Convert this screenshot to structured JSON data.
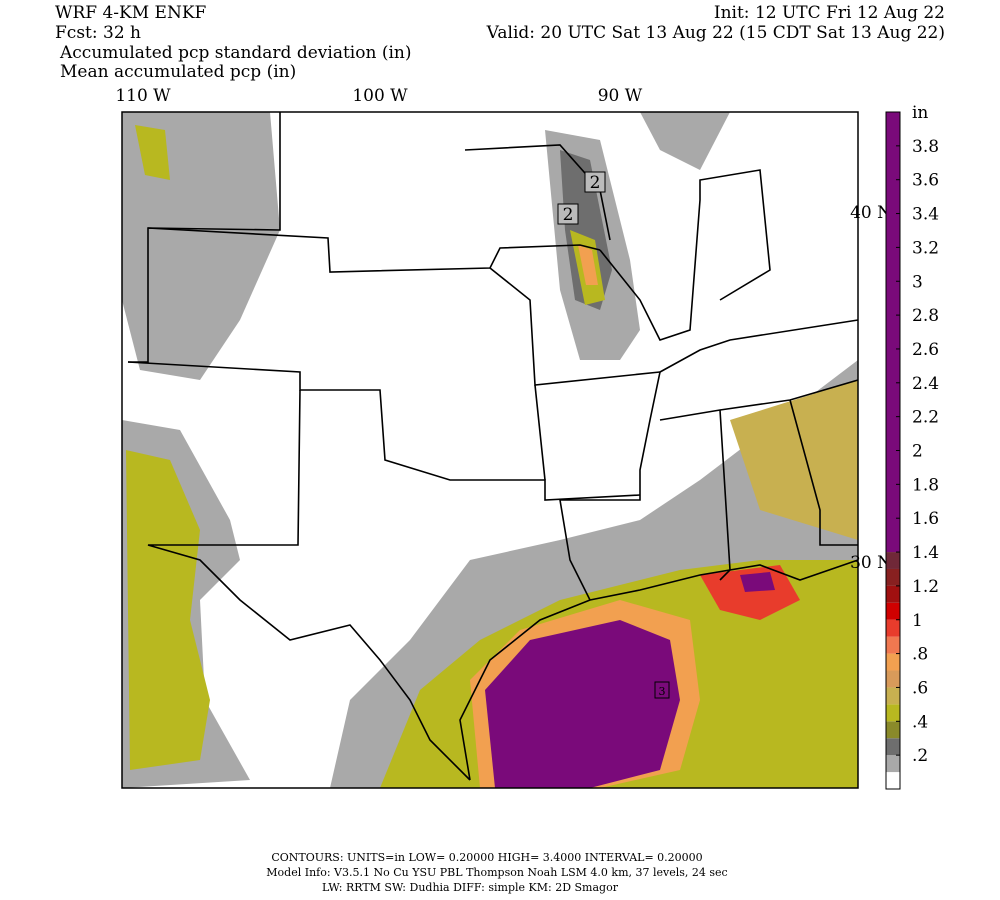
{
  "header": {
    "left_line1": "WRF 4-KM ENKF",
    "left_line2": "Fcst:   32 h",
    "right_line1": "Init: 12 UTC Fri 12 Aug 22",
    "right_line2": "Valid: 20 UTC Sat 13 Aug 22 (15 CDT Sat 13 Aug 22)",
    "field1": "Accumulated pcp standard deviation (in)",
    "field2": "Mean accumulated pcp (in)"
  },
  "map": {
    "lon_labels": [
      "110 W",
      "100 W",
      "90 W"
    ],
    "lat_labels": [
      "40 N",
      "30 N"
    ],
    "contour_labels": [
      "2",
      "2",
      "3"
    ]
  },
  "colorbar": {
    "unit": "in",
    "bins": [
      0,
      0.1,
      0.2,
      0.3,
      0.4,
      0.5,
      0.6,
      0.7,
      0.8,
      0.9,
      1.0,
      1.1,
      1.2,
      1.3,
      1.4,
      4.0
    ],
    "colors": [
      "#ffffff",
      "#a9a9a9",
      "#6e6e6e",
      "#8a8a2a",
      "#b8b820",
      "#c8b050",
      "#d89a5a",
      "#f2a050",
      "#f07850",
      "#e83c2c",
      "#d00000",
      "#a01010",
      "#882020",
      "#702838",
      "#7a0a7a"
    ],
    "ticks": [
      {
        "value": 0.2,
        "label": ".2"
      },
      {
        "value": 0.4,
        "label": ".4"
      },
      {
        "value": 0.6,
        "label": ".6"
      },
      {
        "value": 0.8,
        "label": ".8"
      },
      1,
      1.2,
      1.4,
      1.6,
      1.8,
      2,
      2.2,
      2.4,
      2.6,
      2.8,
      3,
      3.2,
      3.4,
      3.6,
      3.8
    ]
  },
  "footer": {
    "line1": "CONTOURS:  UNITS=in  LOW= 0.20000      HIGH=  3.4000      INTERVAL=  0.20000",
    "line2": "Model Info: V3.5.1    No Cu    YSU PBL  Thompson      Noah LSM  4.0 km,  37 levels,    24 sec",
    "line3": "LW: RRTM  SW: Dudhia   DIFF: simple  KM: 2D Smagor"
  }
}
